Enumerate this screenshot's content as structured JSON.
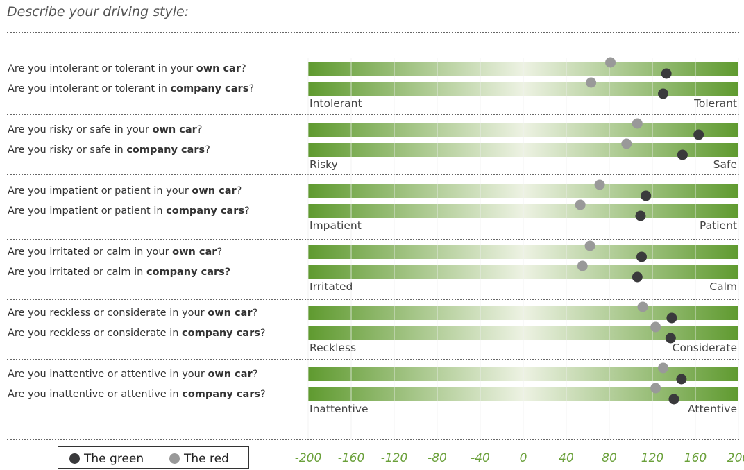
{
  "header": {
    "title": "Describe your driving style:"
  },
  "legend": [
    {
      "name": "The green",
      "color": "#3a3a3c"
    },
    {
      "name": "The red",
      "color": "#999999"
    }
  ],
  "questions": [
    {
      "own": {
        "pre": "Are you intolerant or tolerant in your ",
        "bold": "own car",
        "post": "?"
      },
      "company": {
        "pre": "Are you intolerant or tolerant in ",
        "bold": "company cars",
        "post": "?"
      },
      "low": "Intolerant",
      "high": "Tolerant"
    },
    {
      "own": {
        "pre": "Are you risky or safe in your ",
        "bold": "own car",
        "post": "?"
      },
      "company": {
        "pre": "Are you risky or safe in ",
        "bold": "company cars",
        "post": "?"
      },
      "low": "Risky",
      "high": "Safe"
    },
    {
      "own": {
        "pre": "Are you impatient or patient in your ",
        "bold": "own car",
        "post": "?"
      },
      "company": {
        "pre": "Are you impatient or patient in ",
        "bold": "company cars",
        "post": "?"
      },
      "low": "Impatient",
      "high": "Patient"
    },
    {
      "own": {
        "pre": "Are you irritated or calm in your ",
        "bold": "own car",
        "post": "?"
      },
      "company": {
        "pre": "Are you irritated or calm in ",
        "bold": "company cars?",
        "post": ""
      },
      "low": "Irritated",
      "high": "Calm"
    },
    {
      "own": {
        "pre": "Are you reckless or considerate in your ",
        "bold": "own car",
        "post": "?"
      },
      "company": {
        "pre": "Are you reckless or considerate in ",
        "bold": "company cars",
        "post": "?"
      },
      "low": "Reckless",
      "high": "Considerate"
    },
    {
      "own": {
        "pre": "Are you inattentive or attentive in your ",
        "bold": "own car",
        "post": "?"
      },
      "company": {
        "pre": "Are you inattentive or attentive in ",
        "bold": "company cars",
        "post": "?"
      },
      "low": "Inattentive",
      "high": "Attentive"
    }
  ],
  "chart_data": {
    "type": "scatter",
    "orientation": "horizontal dot plot",
    "xlim": [
      -200,
      200
    ],
    "x_ticks": [
      -200,
      -160,
      -120,
      -80,
      -40,
      0,
      40,
      80,
      120,
      160,
      200
    ],
    "grid": true,
    "categories": [
      "intolerant-tolerant own car",
      "intolerant-tolerant company cars",
      "risky-safe own car",
      "risky-safe company cars",
      "impatient-patient own car",
      "impatient-patient company cars",
      "irritated-calm own car",
      "irritated-calm company cars",
      "reckless-considerate own car",
      "reckless-considerate company cars",
      "inattentive-attentive own car",
      "inattentive-attentive company cars"
    ],
    "series": [
      {
        "name": "The green",
        "color": "#3a3a3c",
        "values": [
          133,
          130,
          163,
          148,
          114,
          109,
          110,
          106,
          138,
          137,
          147,
          140
        ]
      },
      {
        "name": "The red",
        "color": "#999999",
        "values": [
          81,
          63,
          106,
          96,
          71,
          53,
          62,
          55,
          111,
          123,
          130,
          123
        ]
      }
    ],
    "colors": {
      "bar_dark": "#5f9a2f",
      "bar_light": "#edf2e3",
      "tick_label": "#6aa03a"
    }
  }
}
